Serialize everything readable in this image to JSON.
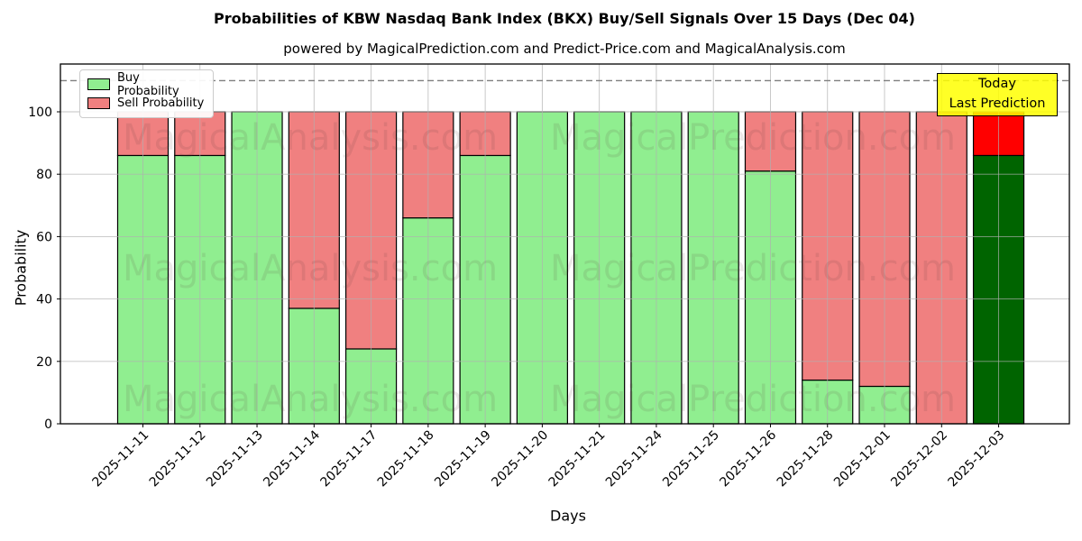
{
  "header": {
    "title": "Probabilities of KBW Nasdaq Bank Index (BKX) Buy/Sell Signals Over 15 Days (Dec 04)",
    "subtitle": "powered by MagicalPrediction.com and Predict-Price.com and MagicalAnalysis.com"
  },
  "legend": {
    "items": [
      {
        "label": "Buy Probability",
        "color": "#90ee90"
      },
      {
        "label": "Sell Probability",
        "color": "#f08080"
      }
    ]
  },
  "annotation": {
    "line1": "Today",
    "line2": "Last Prediction",
    "bg_color": "#ffff00"
  },
  "watermarks": {
    "left_text": "MagicalAnalysis.com",
    "right_text": "MagicalPrediction.com"
  },
  "chart_data": {
    "type": "bar",
    "stacked": true,
    "title": "Probabilities of KBW Nasdaq Bank Index (BKX) Buy/Sell Signals Over 15 Days (Dec 04)",
    "xlabel": "Days",
    "ylabel": "Probability",
    "categories": [
      "2025-11-11",
      "2025-11-12",
      "2025-11-13",
      "2025-11-14",
      "2025-11-17",
      "2025-11-18",
      "2025-11-19",
      "2025-11-20",
      "2025-11-21",
      "2025-11-24",
      "2025-11-25",
      "2025-11-26",
      "2025-11-28",
      "2025-12-01",
      "2025-12-02",
      "2025-12-03"
    ],
    "series": [
      {
        "name": "Buy Probability",
        "color": "#90ee90",
        "values": [
          86,
          86,
          100,
          37,
          24,
          66,
          86,
          100,
          100,
          100,
          100,
          81,
          14,
          12,
          0,
          86
        ]
      },
      {
        "name": "Sell Probability",
        "color": "#f08080",
        "values": [
          14,
          14,
          0,
          63,
          76,
          34,
          14,
          0,
          0,
          0,
          0,
          19,
          86,
          88,
          100,
          14
        ]
      }
    ],
    "today_index": 15,
    "today_colors": {
      "buy": "#006400",
      "sell": "#ff0000"
    },
    "yticks": [
      0,
      20,
      40,
      60,
      80,
      100
    ],
    "ylim": [
      0,
      115
    ],
    "dashed_line_y": 110,
    "grid": true,
    "legend_position": "upper left"
  }
}
